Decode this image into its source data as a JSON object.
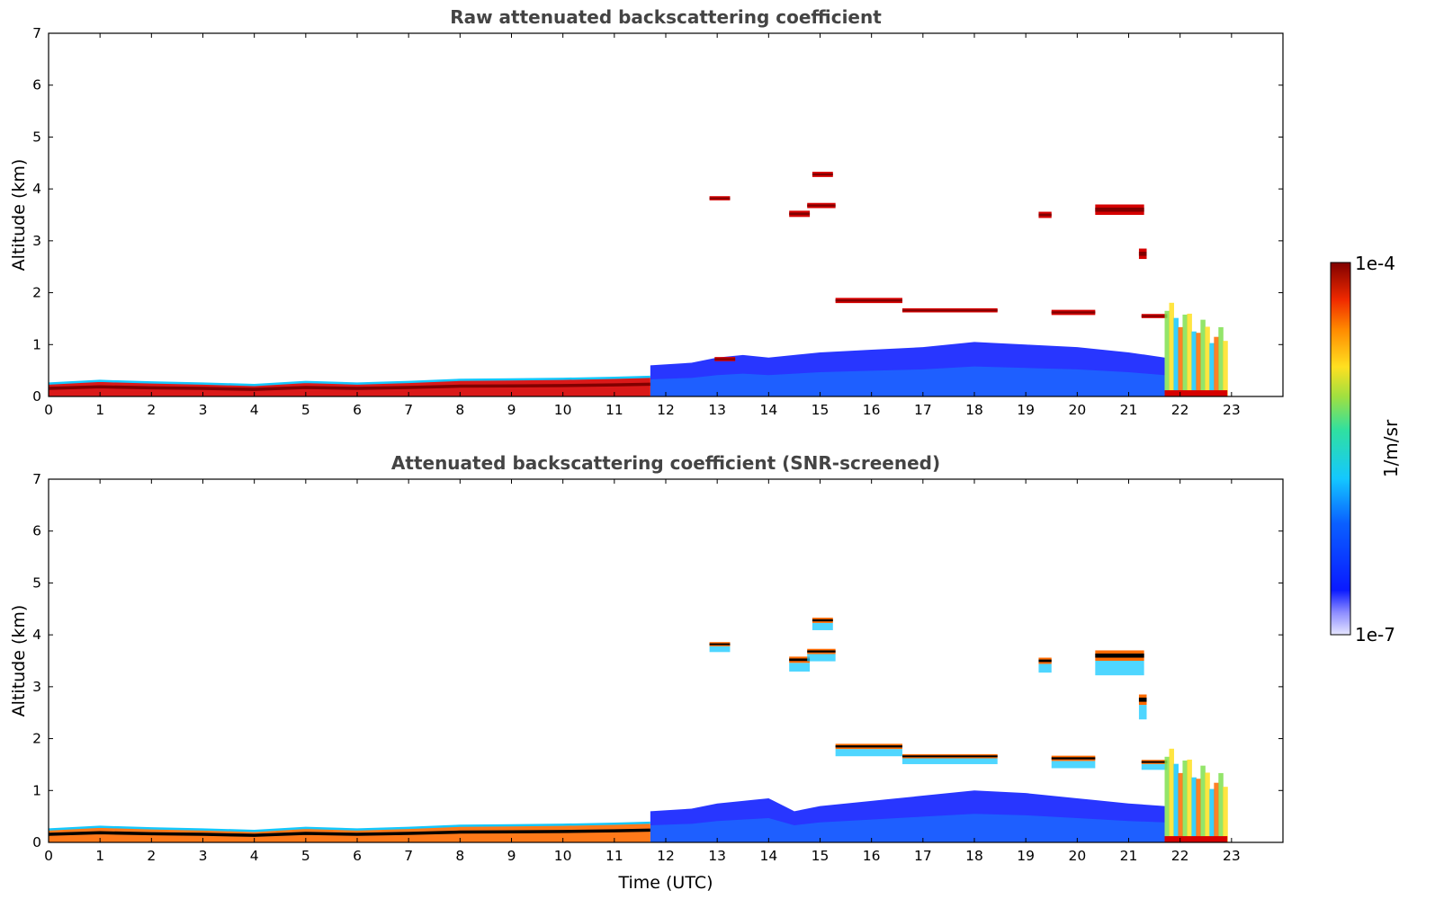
{
  "colors": {
    "low": "#e6e6ff",
    "blue": "#0a1aff",
    "cyan": "#14c8ff",
    "green": "#80e050",
    "yellow": "#ffe020",
    "orange": "#ff6a00",
    "red": "#d60000",
    "darkred": "#800000",
    "screened_core": "#000000"
  },
  "colorbar": {
    "max_label": "1e-4",
    "min_label": "1e-7",
    "unit_label": "1/m/sr",
    "scale": "log",
    "range": [
      1e-07,
      0.0001
    ]
  },
  "chart_data": [
    {
      "type": "heatmap",
      "title": "Raw attenuated backscattering coefficient",
      "xlabel": "",
      "ylabel": "Altitude (km)",
      "xlim": [
        0,
        24
      ],
      "ylim": [
        0,
        7
      ],
      "xticks": [
        0,
        1,
        2,
        3,
        4,
        5,
        6,
        7,
        8,
        9,
        10,
        11,
        12,
        13,
        14,
        15,
        16,
        17,
        18,
        19,
        20,
        21,
        22,
        23
      ],
      "yticks": [
        0,
        1,
        2,
        3,
        4,
        5,
        6,
        7
      ],
      "data_end_hour": 22.92,
      "features": {
        "boundary_layer_top_km": [
          [
            0,
            0.25
          ],
          [
            1,
            0.3
          ],
          [
            2,
            0.27
          ],
          [
            3,
            0.25
          ],
          [
            4,
            0.22
          ],
          [
            5,
            0.28
          ],
          [
            6,
            0.25
          ],
          [
            7,
            0.28
          ],
          [
            8,
            0.32
          ],
          [
            9,
            0.33
          ],
          [
            10,
            0.34
          ],
          [
            11,
            0.36
          ],
          [
            11.7,
            0.38
          ]
        ],
        "aerosol_layer_top_km": [
          [
            11.7,
            0.6
          ],
          [
            12.5,
            0.65
          ],
          [
            13,
            0.75
          ],
          [
            13.5,
            0.8
          ],
          [
            14,
            0.75
          ],
          [
            15,
            0.85
          ],
          [
            16,
            0.9
          ],
          [
            17,
            0.95
          ],
          [
            18,
            1.05
          ],
          [
            19,
            1.0
          ],
          [
            20,
            0.95
          ],
          [
            21,
            0.85
          ],
          [
            21.7,
            0.75
          ]
        ],
        "cloud_layers": [
          {
            "start": 12.85,
            "end": 13.25,
            "alt_km": 3.82,
            "thickness_km": 0.08
          },
          {
            "start": 12.95,
            "end": 13.35,
            "alt_km": 0.72,
            "thickness_km": 0.08
          },
          {
            "start": 14.4,
            "end": 14.8,
            "alt_km": 3.52,
            "thickness_km": 0.12
          },
          {
            "start": 14.75,
            "end": 15.3,
            "alt_km": 3.68,
            "thickness_km": 0.1
          },
          {
            "start": 14.85,
            "end": 15.25,
            "alt_km": 4.28,
            "thickness_km": 0.1
          },
          {
            "start": 15.3,
            "end": 16.6,
            "alt_km": 1.85,
            "thickness_km": 0.1
          },
          {
            "start": 16.6,
            "end": 18.45,
            "alt_km": 1.66,
            "thickness_km": 0.08
          },
          {
            "start": 19.25,
            "end": 19.5,
            "alt_km": 3.5,
            "thickness_km": 0.12
          },
          {
            "start": 19.5,
            "end": 20.35,
            "alt_km": 1.62,
            "thickness_km": 0.1
          },
          {
            "start": 20.35,
            "end": 21.3,
            "alt_km": 3.6,
            "thickness_km": 0.2
          },
          {
            "start": 21.2,
            "end": 21.35,
            "alt_km": 2.75,
            "thickness_km": 0.2
          },
          {
            "start": 21.25,
            "end": 21.75,
            "alt_km": 1.55,
            "thickness_km": 0.08
          }
        ],
        "precipitation_hours": [
          21.7,
          22.92
        ]
      }
    },
    {
      "type": "heatmap",
      "title": "Attenuated backscattering coefficient (SNR-screened)",
      "xlabel": "Time (UTC)",
      "ylabel": "Altitude (km)",
      "xlim": [
        0,
        24
      ],
      "ylim": [
        0,
        7
      ],
      "xticks": [
        0,
        1,
        2,
        3,
        4,
        5,
        6,
        7,
        8,
        9,
        10,
        11,
        12,
        13,
        14,
        15,
        16,
        17,
        18,
        19,
        20,
        21,
        22,
        23
      ],
      "yticks": [
        0,
        1,
        2,
        3,
        4,
        5,
        6,
        7
      ],
      "data_end_hour": 22.92,
      "features": {
        "boundary_layer_top_km": [
          [
            0,
            0.25
          ],
          [
            1,
            0.3
          ],
          [
            2,
            0.27
          ],
          [
            3,
            0.25
          ],
          [
            4,
            0.22
          ],
          [
            5,
            0.28
          ],
          [
            6,
            0.25
          ],
          [
            7,
            0.28
          ],
          [
            8,
            0.32
          ],
          [
            9,
            0.33
          ],
          [
            10,
            0.34
          ],
          [
            11,
            0.36
          ],
          [
            11.7,
            0.38
          ]
        ],
        "aerosol_layer_top_km": [
          [
            11.7,
            0.6
          ],
          [
            12.5,
            0.65
          ],
          [
            13,
            0.75
          ],
          [
            13.5,
            0.8
          ],
          [
            14,
            0.85
          ],
          [
            14.5,
            0.6
          ],
          [
            15,
            0.7
          ],
          [
            16,
            0.8
          ],
          [
            17,
            0.9
          ],
          [
            18,
            1.0
          ],
          [
            19,
            0.95
          ],
          [
            20,
            0.85
          ],
          [
            21,
            0.75
          ],
          [
            21.7,
            0.7
          ]
        ],
        "cloud_layers": [
          {
            "start": 12.85,
            "end": 13.25,
            "alt_km": 3.82,
            "thickness_km": 0.08
          },
          {
            "start": 14.4,
            "end": 14.8,
            "alt_km": 3.52,
            "thickness_km": 0.12
          },
          {
            "start": 14.75,
            "end": 15.3,
            "alt_km": 3.68,
            "thickness_km": 0.1
          },
          {
            "start": 14.85,
            "end": 15.25,
            "alt_km": 4.28,
            "thickness_km": 0.1
          },
          {
            "start": 15.3,
            "end": 16.6,
            "alt_km": 1.85,
            "thickness_km": 0.1
          },
          {
            "start": 16.6,
            "end": 18.45,
            "alt_km": 1.66,
            "thickness_km": 0.08
          },
          {
            "start": 19.25,
            "end": 19.5,
            "alt_km": 3.5,
            "thickness_km": 0.12
          },
          {
            "start": 19.5,
            "end": 20.35,
            "alt_km": 1.62,
            "thickness_km": 0.1
          },
          {
            "start": 20.35,
            "end": 21.3,
            "alt_km": 3.6,
            "thickness_km": 0.2
          },
          {
            "start": 21.2,
            "end": 21.35,
            "alt_km": 2.75,
            "thickness_km": 0.2
          },
          {
            "start": 21.25,
            "end": 21.75,
            "alt_km": 1.55,
            "thickness_km": 0.08
          }
        ],
        "precipitation_hours": [
          21.7,
          22.92
        ]
      }
    }
  ]
}
